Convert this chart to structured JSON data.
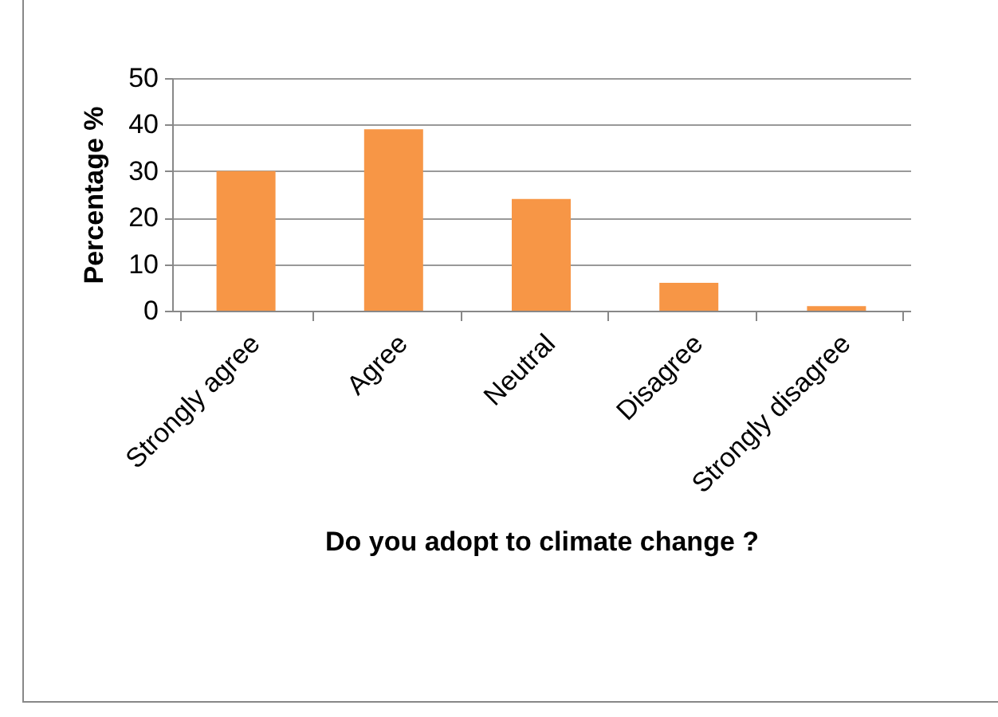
{
  "chart_data": {
    "type": "bar",
    "xlabel": "Do  you adopt to climate change ?",
    "ylabel": "Percentage %",
    "categories": [
      "Strongly agree",
      "Agree",
      "Neutral",
      "Disagree",
      "Strongly disagree"
    ],
    "values": [
      30,
      39,
      24,
      6,
      1
    ],
    "color": "#f79646",
    "ylim": [
      0,
      50
    ],
    "yticks": [
      0,
      10,
      20,
      30,
      40,
      50
    ],
    "grid": "y"
  }
}
